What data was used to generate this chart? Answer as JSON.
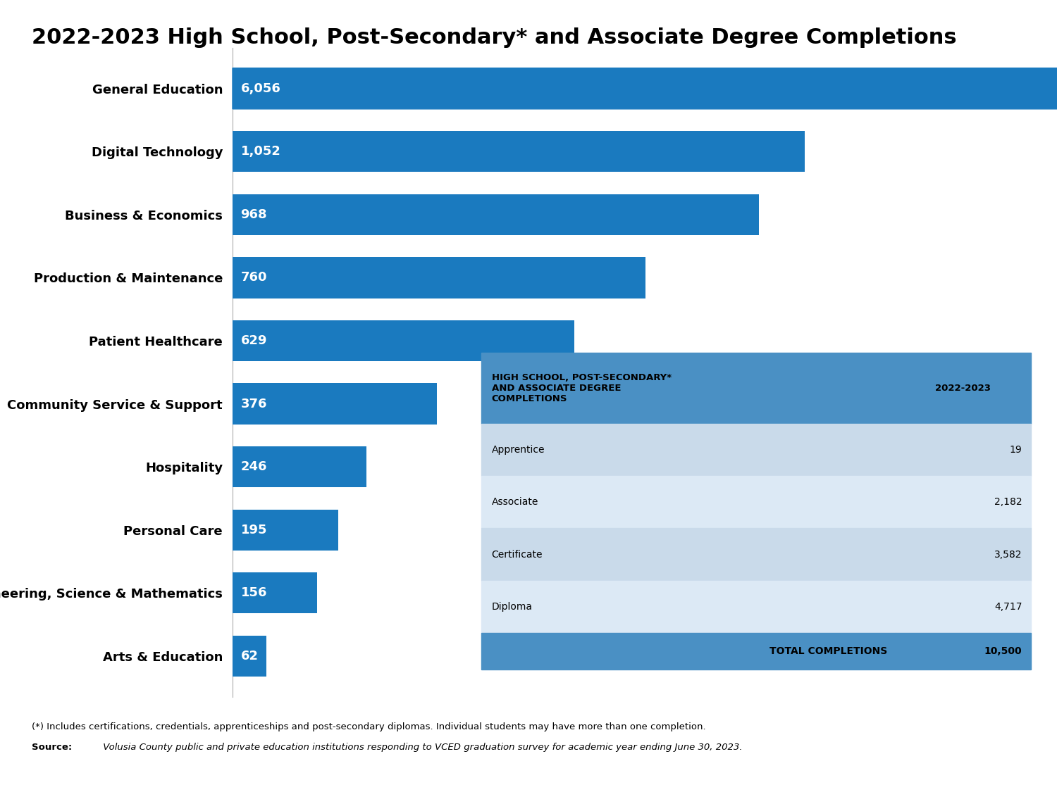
{
  "title": "2022-2023 High School, Post-Secondary* and Associate Degree Completions",
  "categories": [
    "General Education",
    "Digital Technology",
    "Business & Economics",
    "Production & Maintenance",
    "Patient Healthcare",
    "Community Service & Support",
    "Hospitality",
    "Personal Care",
    "Engineering, Science & Mathematics",
    "Arts & Education"
  ],
  "values": [
    6056,
    1052,
    968,
    760,
    629,
    376,
    246,
    195,
    156,
    62
  ],
  "bar_color": "#1a7abf",
  "arrow_color": "#1a7abf",
  "label_color": "#ffffff",
  "category_color": "#000000",
  "title_color": "#000000",
  "background_color": "#ffffff",
  "table_header_color": "#4a90c4",
  "table_row_colors": [
    "#c9daea",
    "#dce9f5"
  ],
  "table_footer_color": "#4a90c4",
  "table_data": {
    "col1_header": "HIGH SCHOOL, POST-SECONDARY*\nAND ASSOCIATE DEGREE\nCOMPLETIONS",
    "col2_header": "2022-2023",
    "rows": [
      [
        "Apprentice",
        "19"
      ],
      [
        "Associate",
        "2,182"
      ],
      [
        "Certificate",
        "3,582"
      ],
      [
        "Diploma",
        "4,717"
      ]
    ],
    "footer_label": "TOTAL COMPLETIONS",
    "footer_value": "10,500"
  },
  "footnote1": "(*) Includes certifications, credentials, apprenticeships and post-secondary diplomas. Individual students may have more than one completion.",
  "footnote2_bold": "Source: ",
  "footnote2_italic": " Volusia County public and private education institutions responding to VCED graduation survey for academic year ending June 30, 2023.",
  "xlim": [
    0,
    1400
  ],
  "title_fontsize": 22,
  "label_fontsize": 13,
  "category_fontsize": 13,
  "footnote_fontsize": 9.5
}
